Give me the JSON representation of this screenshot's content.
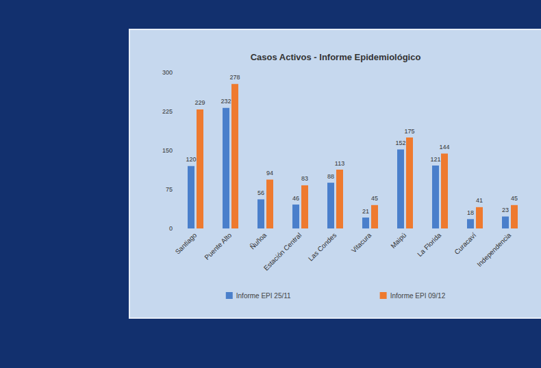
{
  "chart_data": {
    "type": "bar",
    "title": "Casos Activos - Informe Epidemiológico",
    "categories": [
      "Santiago",
      "Puente Alto",
      "Ñuñoa",
      "Estación Central",
      "Las Condes",
      "Vitacura",
      "Maipú",
      "La Florida",
      "Curacaví",
      "Independencia"
    ],
    "series": [
      {
        "name": "Informe EPI 25/11",
        "color": "#4a7fcb",
        "values": [
          120,
          232,
          56,
          46,
          88,
          21,
          152,
          121,
          18,
          23
        ]
      },
      {
        "name": "Informe EPI 09/12",
        "color": "#ee7a2f",
        "values": [
          229,
          278,
          94,
          83,
          113,
          45,
          175,
          144,
          41,
          45
        ]
      }
    ],
    "ylim": [
      0,
      300
    ],
    "yticks": [
      0,
      75,
      150,
      225,
      300
    ],
    "grid": false,
    "legend": "bottom",
    "data_labels": true
  }
}
